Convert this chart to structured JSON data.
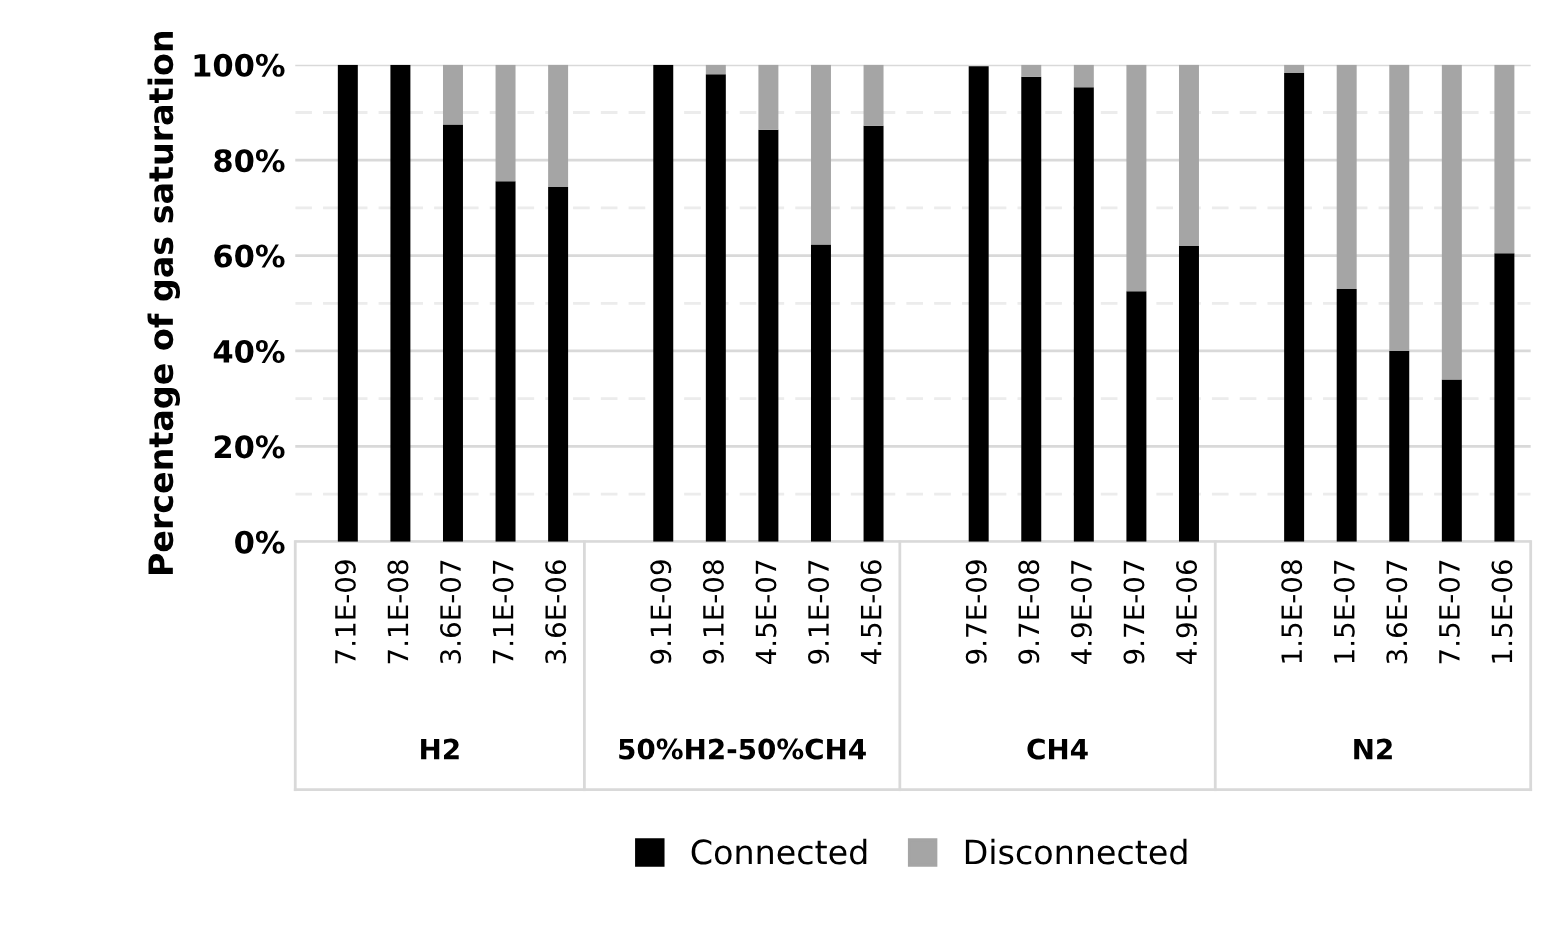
{
  "chart_data": {
    "type": "bar",
    "stacked": true,
    "ylabel": "Percentage of gas saturation",
    "categories": [
      "7.1E-09",
      "7.1E-08",
      "3.6E-07",
      "7.1E-07",
      "3.6E-06",
      null,
      "9.1E-09",
      "9.1E-08",
      "4.5E-07",
      "9.1E-07",
      "4.5E-06",
      null,
      "9.7E-09",
      "9.7E-08",
      "4.9E-07",
      "9.7E-07",
      "4.9E-06",
      null,
      "1.5E-08",
      "1.5E-07",
      "3.6E-07",
      "7.5E-07",
      "1.5E-06"
    ],
    "series": [
      {
        "name": "Connected",
        "color": "#000000",
        "values": [
          100,
          100,
          87.5,
          75.6,
          74.4,
          null,
          100,
          98,
          86.4,
          62.3,
          87.2,
          null,
          99.7,
          97.5,
          95.3,
          52.5,
          62,
          null,
          98.3,
          53,
          40,
          34,
          60.5
        ]
      },
      {
        "name": "Disconnected",
        "color": "#a5a5a5",
        "values": [
          0,
          0,
          12.5,
          24.4,
          25.6,
          null,
          0,
          2,
          13.6,
          37.7,
          12.8,
          null,
          null,
          2.5,
          4.7,
          47.5,
          38,
          null,
          1.7,
          47,
          60,
          66,
          39.5
        ]
      }
    ],
    "annotations": [
      "H2",
      "50%H2-50%CH4",
      "CH4",
      "N2"
    ],
    "ylim": [
      0,
      100
    ],
    "yticks": [
      {
        "value": 0,
        "label": "0%"
      },
      {
        "value": 10,
        "label": null
      },
      {
        "value": 20,
        "label": "20%"
      },
      {
        "value": 30,
        "label": null
      },
      {
        "value": 40,
        "label": "40%"
      },
      {
        "value": 50,
        "label": null
      },
      {
        "value": 60,
        "label": "60%"
      },
      {
        "value": 70,
        "label": null
      },
      {
        "value": 80,
        "label": "80%"
      },
      {
        "value": 90,
        "label": null
      },
      {
        "value": 100,
        "label": "100%"
      }
    ],
    "grid": "y",
    "legend": "bottom"
  }
}
